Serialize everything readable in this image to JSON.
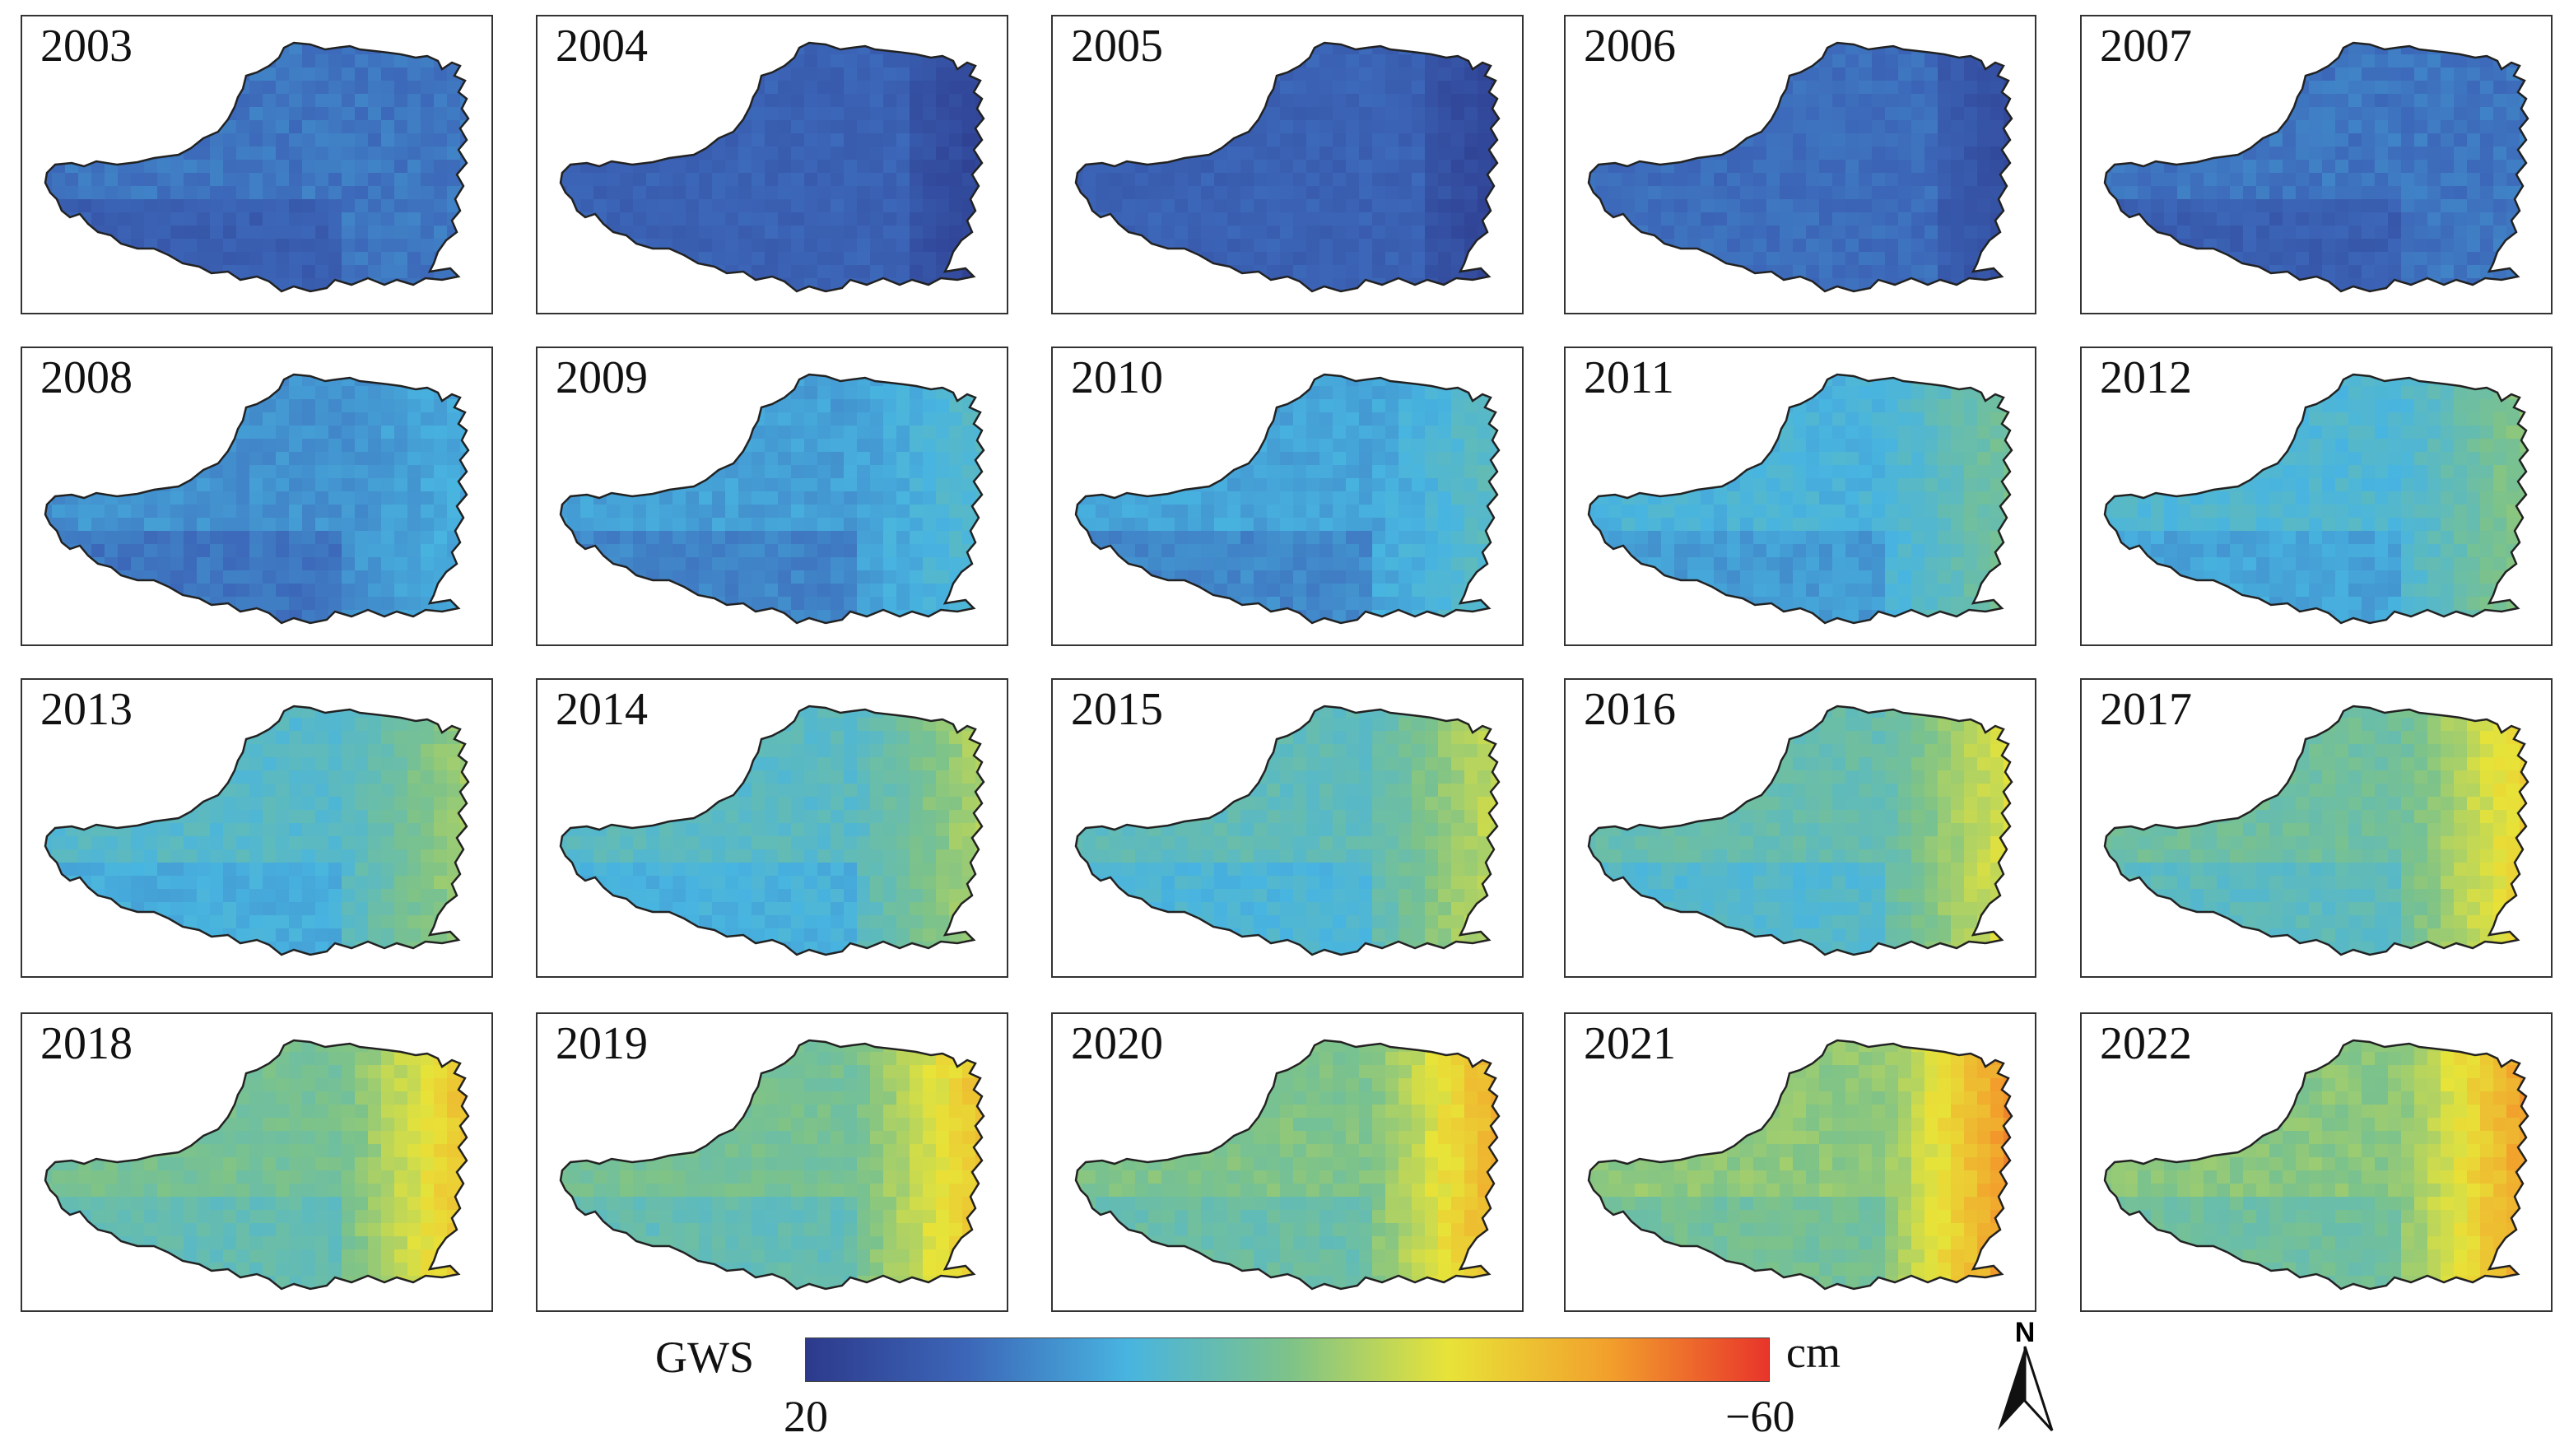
{
  "figure": {
    "legend": {
      "variable": "GWS",
      "unit": "cm",
      "min_label": "20",
      "max_label": "−60"
    },
    "north_arrow": {
      "letter": "N"
    },
    "colormap": [
      "#2d3a8c",
      "#3c66b8",
      "#48b4e0",
      "#7cc28a",
      "#e8e338",
      "#f2a02c",
      "#e8352b"
    ]
  },
  "panels": [
    {
      "year": "2003",
      "level": 0.2
    },
    {
      "year": "2004",
      "level": 0.15
    },
    {
      "year": "2005",
      "level": 0.15
    },
    {
      "year": "2006",
      "level": 0.18
    },
    {
      "year": "2007",
      "level": 0.2
    },
    {
      "year": "2008",
      "level": 0.26
    },
    {
      "year": "2009",
      "level": 0.29
    },
    {
      "year": "2010",
      "level": 0.3
    },
    {
      "year": "2011",
      "level": 0.34
    },
    {
      "year": "2012",
      "level": 0.36
    },
    {
      "year": "2013",
      "level": 0.38
    },
    {
      "year": "2014",
      "level": 0.39
    },
    {
      "year": "2015",
      "level": 0.41
    },
    {
      "year": "2016",
      "level": 0.43
    },
    {
      "year": "2017",
      "level": 0.46
    },
    {
      "year": "2018",
      "level": 0.48
    },
    {
      "year": "2019",
      "level": 0.48
    },
    {
      "year": "2020",
      "level": 0.5
    },
    {
      "year": "2021",
      "level": 0.53
    },
    {
      "year": "2022",
      "level": 0.52
    }
  ]
}
